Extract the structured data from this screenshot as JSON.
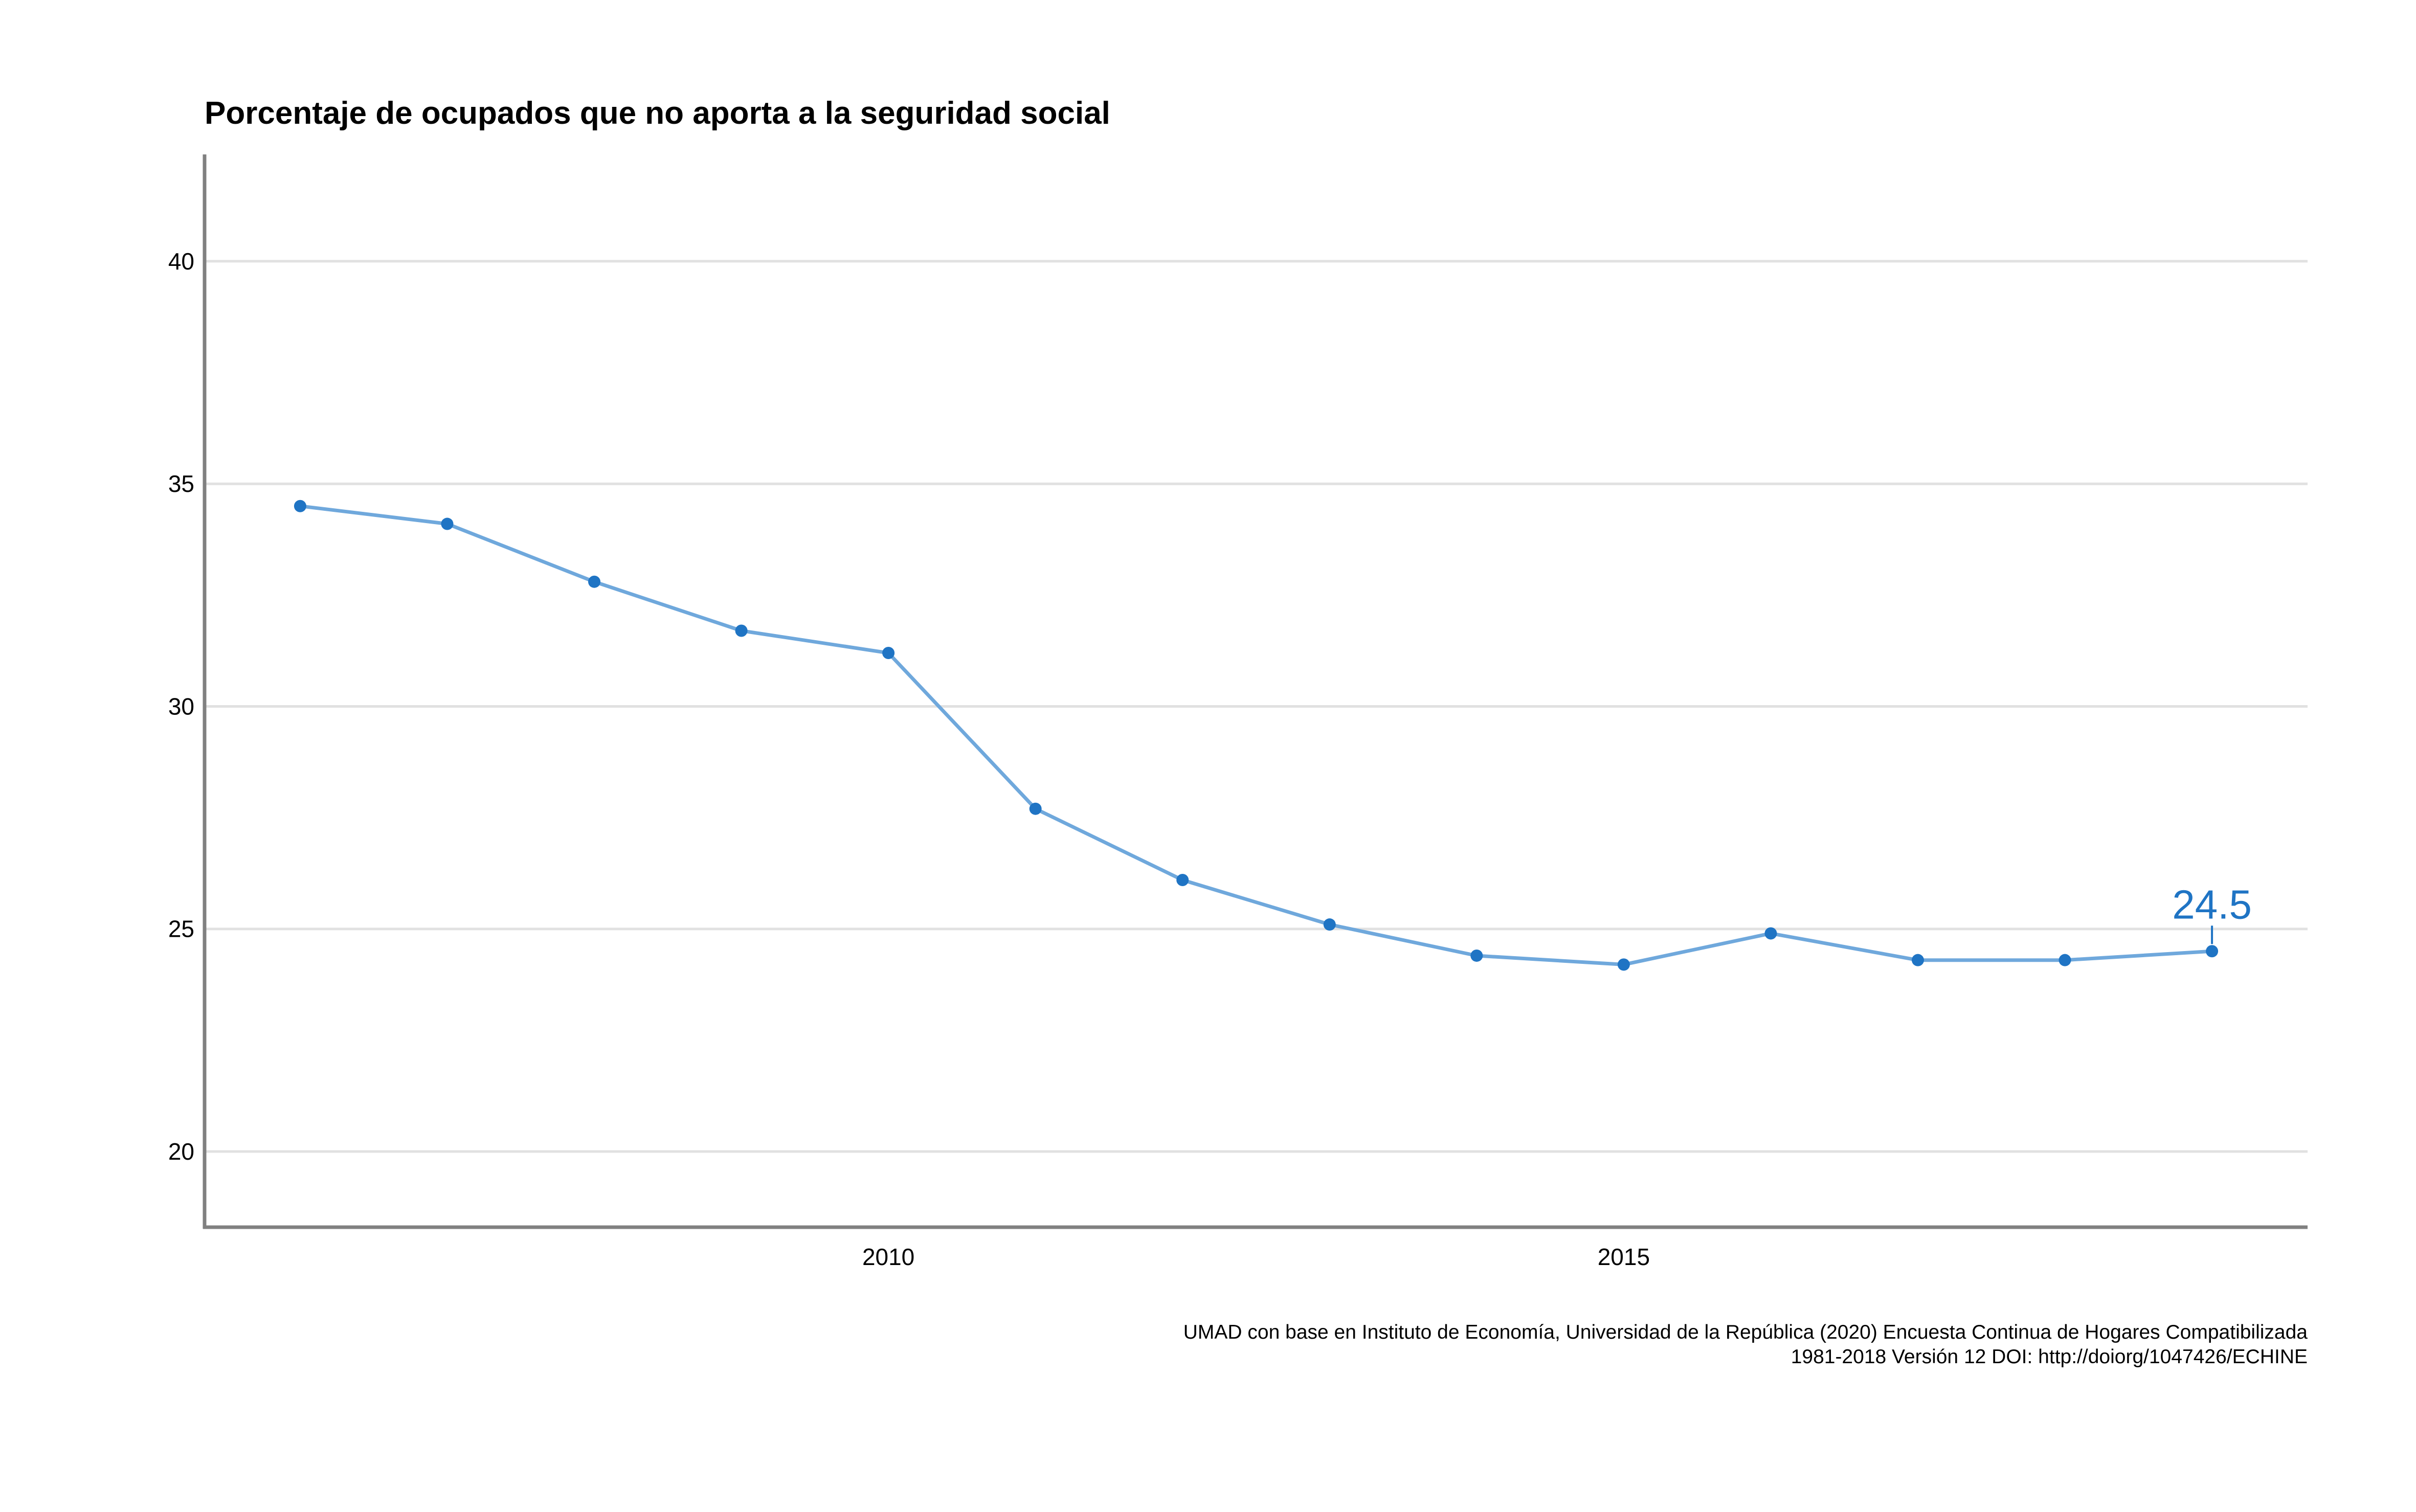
{
  "chart_data": {
    "type": "line",
    "title": "Porcentaje de ocupados que no aporta a la seguridad social",
    "xlabel": "",
    "ylabel": "",
    "x": [
      2006,
      2007,
      2008,
      2009,
      2010,
      2011,
      2012,
      2013,
      2014,
      2015,
      2016,
      2017,
      2018,
      2019
    ],
    "series": [
      {
        "values": [
          34.5,
          34.1,
          32.8,
          31.7,
          31.2,
          27.7,
          26.1,
          25.1,
          24.4,
          24.2,
          24.9,
          24.3,
          24.3,
          24.5
        ]
      }
    ],
    "xlim": [
      2005.35,
      2019.65
    ],
    "ylim": [
      18.3,
      42.4
    ],
    "xticks": [
      2010,
      2015
    ],
    "xtick_labels": [
      "2010",
      "2015"
    ],
    "yticks": [
      20,
      25,
      30,
      35,
      40
    ],
    "ytick_labels": [
      "20",
      "25",
      "30",
      "35",
      "40"
    ],
    "grid": "horizontal",
    "legend": "none",
    "annotations": [
      {
        "x": 2019,
        "y": 24.5,
        "text": "24.5"
      }
    ],
    "caption": [
      "UMAD con base en Instituto de Economía, Universidad de la República (2020) Encuesta Continua de Hogares Compatibilizada",
      "1981-2018 Versión 12 DOI: http://doiorg/1047426/ECHINE"
    ],
    "colors": {
      "line": "#6FA8DC",
      "point": "#1F74C4",
      "label": "#1F74C4",
      "grid": "#E1E1E1",
      "axis": "#808080"
    }
  }
}
